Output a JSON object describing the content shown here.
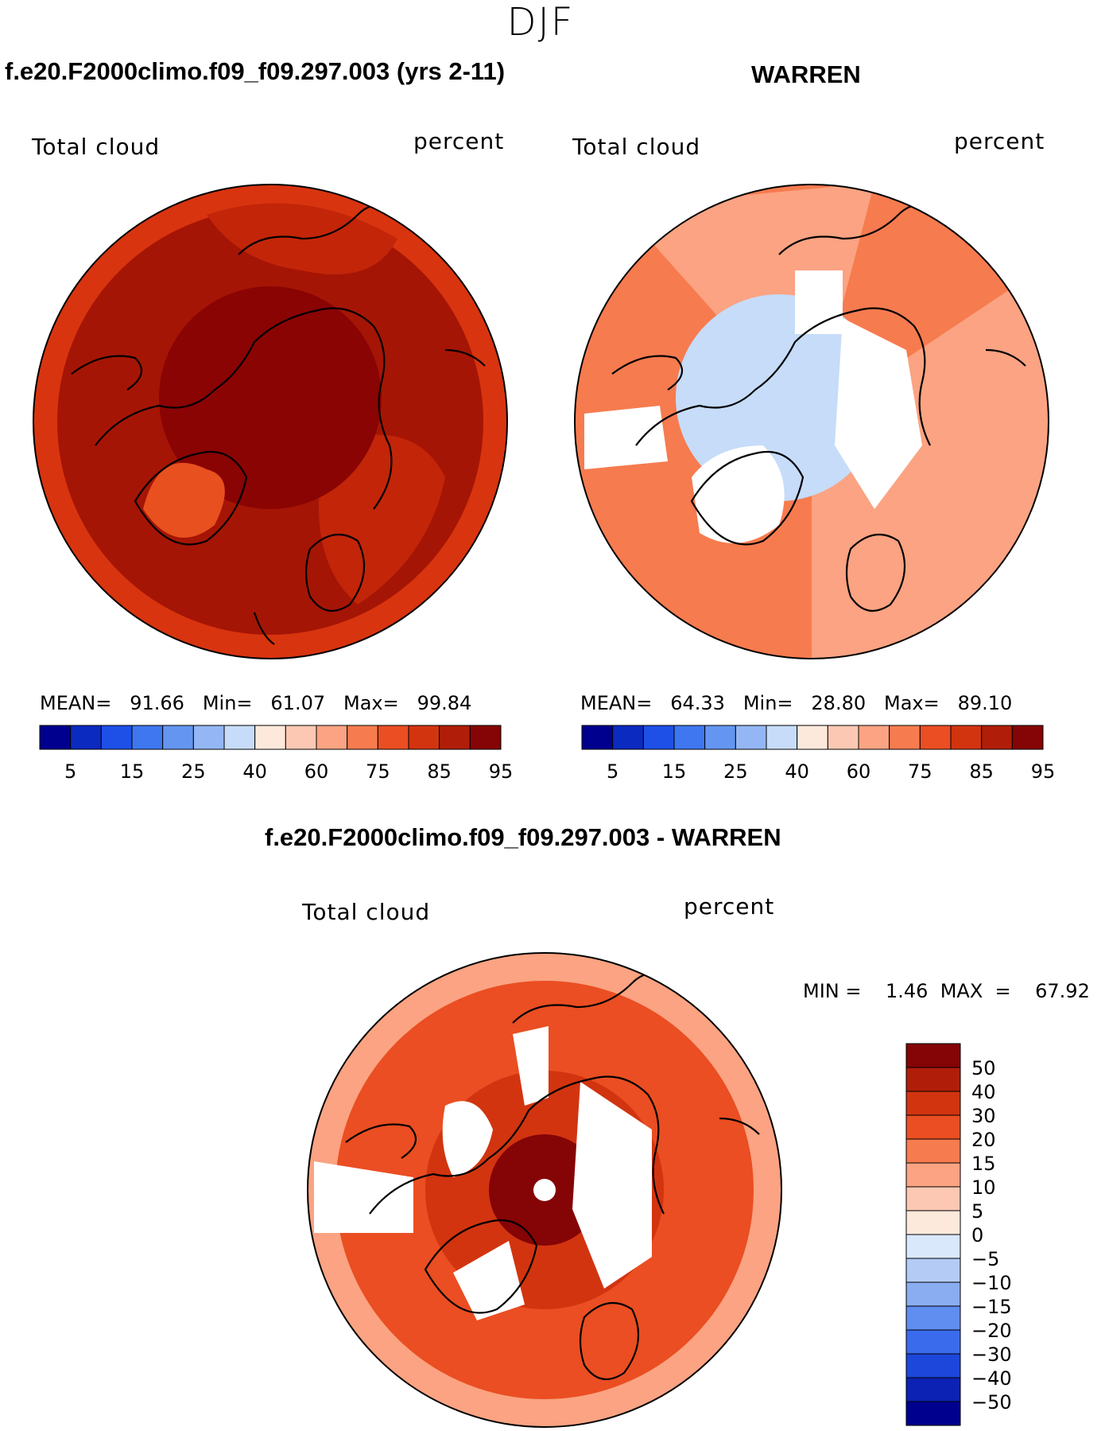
{
  "figure": {
    "season": "DJF",
    "variable": "Total cloud",
    "units": "percent"
  },
  "panels": {
    "model": {
      "title": "f.e20.F2000climo.f09_f09.297.003 (yrs 2-11)",
      "variable": "Total cloud",
      "units": "percent",
      "stats_text": "MEAN=   91.66   Min=   61.07   Max=   99.84",
      "mean": 91.66,
      "min": 61.07,
      "max": 99.84
    },
    "obs": {
      "title": "WARREN",
      "variable": "Total cloud",
      "units": "percent",
      "stats_text": "MEAN=   64.33   Min=   28.80   Max=   89.10",
      "mean": 64.33,
      "min": 28.8,
      "max": 89.1
    },
    "diff": {
      "title": "f.e20.F2000climo.f09_f09.297.003 - WARREN",
      "variable": "Total cloud",
      "units": "percent",
      "stats_text": "MIN =    1.46  MAX  =    67.92",
      "min": 1.46,
      "max": 67.92
    }
  },
  "colorbars": {
    "abs": {
      "colors": [
        "#00008e",
        "#0b2ac0",
        "#1e50e8",
        "#3e77ef",
        "#6496f1",
        "#94b6f5",
        "#c6dcf8",
        "#fde9db",
        "#fcc8b3",
        "#fba382",
        "#f67b4f",
        "#ea4e22",
        "#d23410",
        "#b01e09",
        "#850405"
      ],
      "labels": [
        "5",
        "15",
        "25",
        "40",
        "60",
        "75",
        "85",
        "95"
      ]
    },
    "diff": {
      "colors": [
        "#850405",
        "#b01e09",
        "#d23410",
        "#ea4e22",
        "#f67b4f",
        "#fba382",
        "#fcc8b3",
        "#fde9db",
        "#d9e8fb",
        "#b4cbf6",
        "#8aadf2",
        "#5f8df0",
        "#3a6bec",
        "#1d46db",
        "#0b22b4",
        "#00008e"
      ],
      "labels": [
        "50",
        "40",
        "30",
        "20",
        "15",
        "10",
        "5",
        "0",
        "−5",
        "−10",
        "−15",
        "−20",
        "−30",
        "−40",
        "−50"
      ]
    }
  },
  "map_fields": {
    "model": {
      "base": "#a51505",
      "ring_outer": "#d8340f",
      "mid": "#c32509",
      "greenland": "#e8501f",
      "pole": "#8a0404"
    },
    "obs": {
      "base": "#f67b4f",
      "ring_outer": "#fba382",
      "mid": "#fcc8b3",
      "greenland": "#ffffff",
      "pole": "#c6dcf8"
    },
    "diff": {
      "base": "#ea4e22",
      "ring_outer": "#fba382",
      "mid": "#d23410",
      "greenland": "#ffffff",
      "pole": "#850405"
    }
  }
}
